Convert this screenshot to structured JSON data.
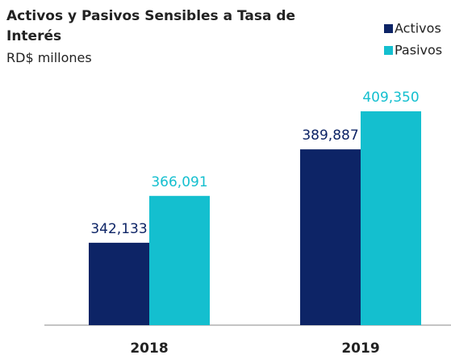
{
  "chart_data": {
    "type": "bar",
    "title": "Activos y Pasivos Sensibles a Tasa de Interés",
    "subtitle": "RD$ millones",
    "categories": [
      "2018",
      "2019"
    ],
    "series": [
      {
        "name": "Activos",
        "color": "#0d2466",
        "values": [
          342133,
          389887
        ],
        "value_labels": [
          "342,133",
          "389,887"
        ]
      },
      {
        "name": "Pasivos",
        "color": "#14bfcf",
        "values": [
          366091,
          409350
        ],
        "value_labels": [
          "366,091",
          "409,350"
        ]
      }
    ],
    "ylim": [
      300000,
      425000
    ],
    "legend": "top-right"
  }
}
